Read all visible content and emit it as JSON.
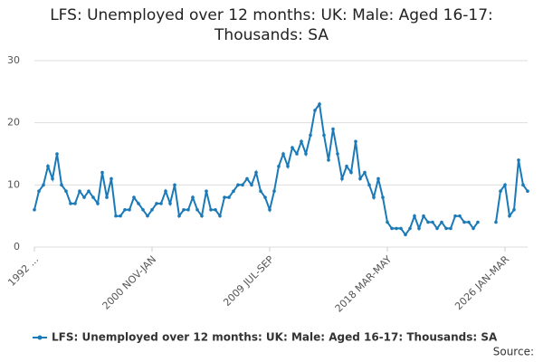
{
  "chart_data": {
    "type": "line",
    "title": "LFS: Unemployed over 12 months: UK: Male: Aged 16-17: Thousands: SA",
    "source": "Source:",
    "categories": [
      "1992 ...",
      null,
      null,
      null,
      null,
      null,
      null,
      null,
      null,
      null,
      null,
      null,
      null,
      null,
      null,
      null,
      null,
      null,
      null,
      null,
      null,
      null,
      null,
      null,
      null,
      null,
      "2000 NOV-JAN",
      null,
      null,
      null,
      null,
      null,
      null,
      null,
      null,
      null,
      null,
      null,
      null,
      null,
      null,
      null,
      null,
      null,
      null,
      null,
      null,
      null,
      null,
      null,
      null,
      null,
      "2009 JUL-SEP",
      null,
      null,
      null,
      null,
      null,
      null,
      null,
      null,
      null,
      null,
      null,
      null,
      null,
      null,
      null,
      null,
      null,
      null,
      null,
      null,
      null,
      null,
      null,
      null,
      null,
      "2018 MAR-MAY",
      null,
      null,
      null,
      null,
      null,
      null,
      null,
      null,
      null,
      null,
      null,
      null,
      null,
      null,
      null,
      null,
      null,
      null,
      null,
      null,
      null,
      null,
      null,
      null,
      null,
      "2026 JAN-MAR",
      null,
      null,
      null,
      null,
      null
    ],
    "series": [
      {
        "name": "LFS: Unemployed over 12 months: UK: Male: Aged 16-17: Thousands: SA",
        "color": "#1a7ab8",
        "values": [
          6,
          9,
          10,
          13,
          11,
          15,
          10,
          9,
          7,
          7,
          9,
          8,
          9,
          8,
          7,
          12,
          8,
          11,
          5,
          5,
          6,
          6,
          8,
          7,
          6,
          5,
          6,
          7,
          7,
          9,
          7,
          10,
          5,
          6,
          6,
          8,
          6,
          5,
          9,
          6,
          6,
          5,
          8,
          8,
          9,
          10,
          10,
          11,
          10,
          12,
          9,
          8,
          6,
          9,
          13,
          15,
          13,
          16,
          15,
          17,
          15,
          18,
          22,
          23,
          18,
          14,
          19,
          15,
          11,
          13,
          12,
          17,
          11,
          12,
          10,
          8,
          11,
          8,
          4,
          3,
          3,
          3,
          2,
          3,
          5,
          3,
          5,
          4,
          4,
          3,
          4,
          3,
          3,
          5,
          5,
          4,
          4,
          3,
          4,
          null,
          null,
          null,
          4,
          9,
          10,
          5,
          6,
          14,
          10,
          9
        ]
      }
    ],
    "ylim": [
      0,
      30
    ],
    "yticks": [
      0,
      10,
      20,
      30
    ],
    "grid": true
  }
}
